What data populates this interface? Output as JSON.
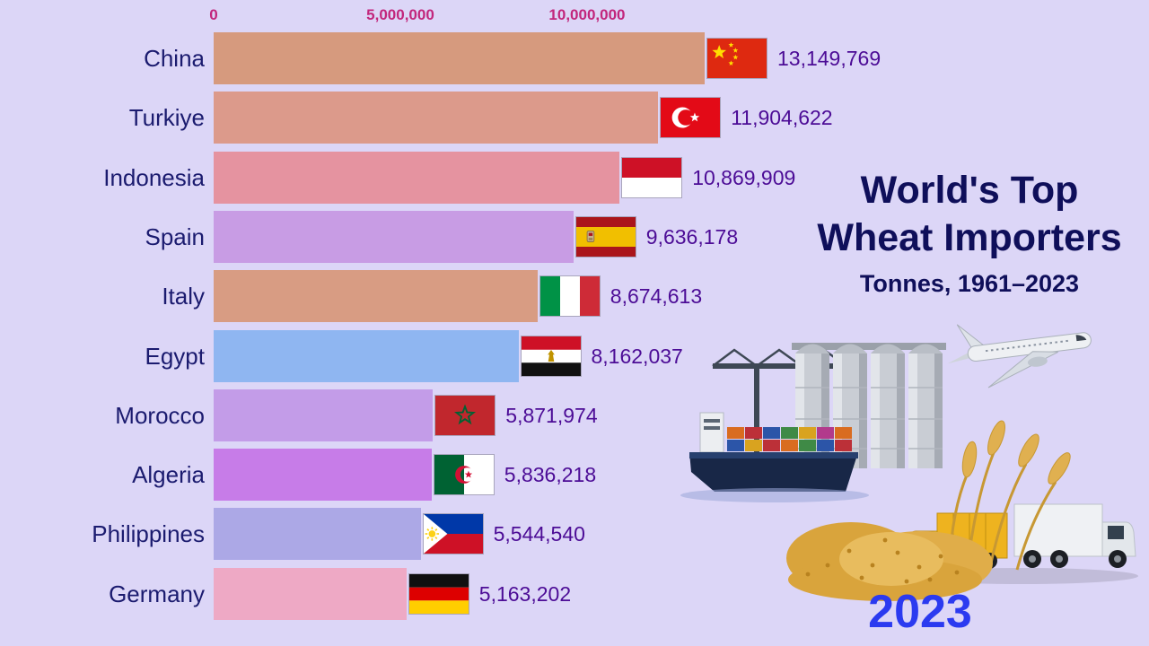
{
  "colors": {
    "background": "#dcd6f7",
    "country_label": "#1b1b6f",
    "value_label": "#4c0c96",
    "tick_label": "#c2267c",
    "title": "#0f0f5a",
    "year": "#2b3af0"
  },
  "title": {
    "line1": "World's Top",
    "line2": "Wheat Importers",
    "subtitle": "Tonnes, 1961–2023"
  },
  "year_label": "2023",
  "chart_data": {
    "type": "bar",
    "orientation": "horizontal",
    "title": "World's Top Wheat Importers",
    "subtitle": "Tonnes, 1961–2023",
    "year": "2023",
    "unit": "tonnes",
    "xlim": [
      0,
      13149769
    ],
    "x_axis": {
      "max": 13149769,
      "ticks": [
        {
          "value": 0,
          "label": "0"
        },
        {
          "value": 5000000,
          "label": "5,000,000"
        },
        {
          "value": 10000000,
          "label": "10,000,000"
        }
      ]
    },
    "rows": [
      {
        "country": "China",
        "value": 13149769,
        "label": "13,149,769",
        "color": "#d69a7e",
        "flag": "cn"
      },
      {
        "country": "Turkiye",
        "value": 11904622,
        "label": "11,904,622",
        "color": "#dc9a8b",
        "flag": "tr"
      },
      {
        "country": "Indonesia",
        "value": 10869909,
        "label": "10,869,909",
        "color": "#e593a0",
        "flag": "id"
      },
      {
        "country": "Spain",
        "value": 9636178,
        "label": "9,636,178",
        "color": "#c89ce4",
        "flag": "es"
      },
      {
        "country": "Italy",
        "value": 8674613,
        "label": "8,674,613",
        "color": "#d89c83",
        "flag": "it"
      },
      {
        "country": "Egypt",
        "value": 8162037,
        "label": "8,162,037",
        "color": "#8fb6f1",
        "flag": "eg"
      },
      {
        "country": "Morocco",
        "value": 5871974,
        "label": "5,871,974",
        "color": "#c39ce8",
        "flag": "ma"
      },
      {
        "country": "Algeria",
        "value": 5836218,
        "label": "5,836,218",
        "color": "#c77ce8",
        "flag": "dz"
      },
      {
        "country": "Philippines",
        "value": 5544540,
        "label": "5,544,540",
        "color": "#aca8e6",
        "flag": "ph"
      },
      {
        "country": "Germany",
        "value": 5163202,
        "label": "5,163,202",
        "color": "#eea9c5",
        "flag": "de"
      }
    ]
  }
}
